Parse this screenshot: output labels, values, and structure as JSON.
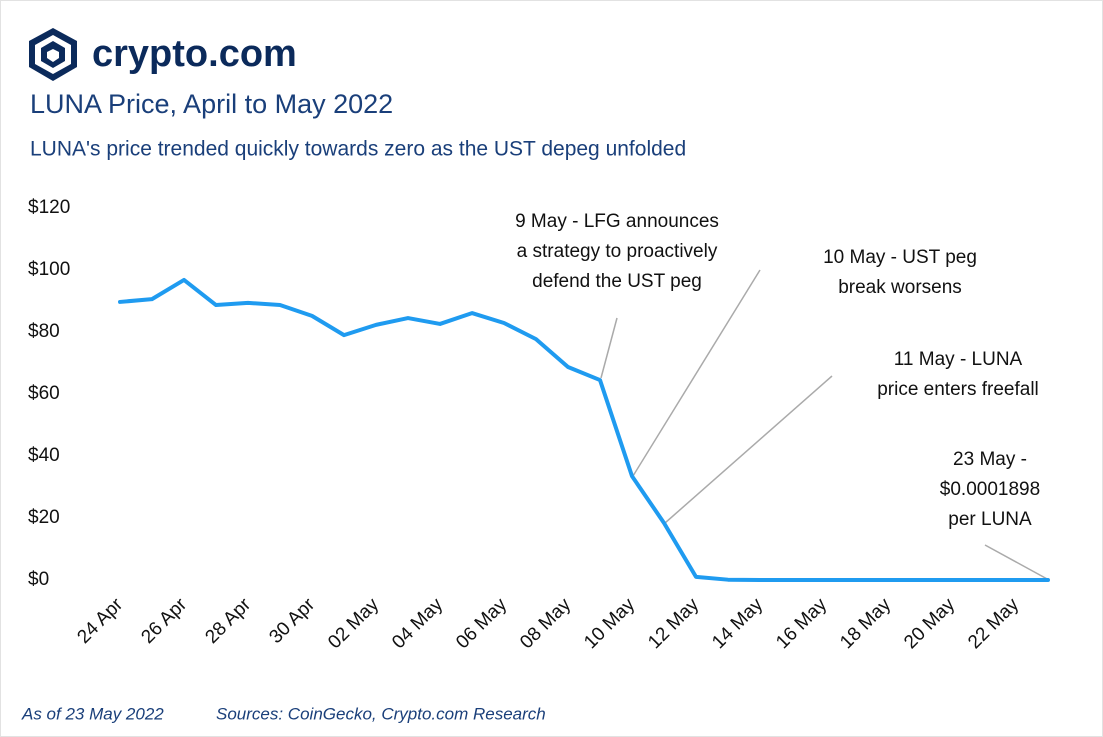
{
  "brand": "crypto.com",
  "chart_data": {
    "type": "line",
    "title": "LUNA Price, April to May 2022",
    "subtitle": "LUNA's price trended quickly towards zero as the UST depeg unfolded",
    "categories": [
      "24 Apr",
      null,
      "26 Apr",
      null,
      "28 Apr",
      null,
      "30 Apr",
      null,
      "02 May",
      null,
      "04 May",
      null,
      "06 May",
      null,
      "08 May",
      null,
      "10 May",
      null,
      "12 May",
      null,
      "14 May",
      null,
      "16 May",
      null,
      "18 May",
      null,
      "20 May",
      null,
      "22 May",
      null
    ],
    "values": [
      89.7,
      90.6,
      96.8,
      88.7,
      89.4,
      88.7,
      85.2,
      79.0,
      82.3,
      84.5,
      82.6,
      86.1,
      82.9,
      77.7,
      68.7,
      64.5,
      33.5,
      18.4,
      1.0,
      0.1,
      0.0002,
      0.0002,
      0.0002,
      0.0002,
      0.0002,
      0.0002,
      0.0002,
      0.0002,
      0.0002,
      0.0001898
    ],
    "color": "#1f9bf0",
    "ylim": [
      0,
      120
    ],
    "yticks": [
      {
        "value": 0,
        "label": "$0"
      },
      {
        "value": 20,
        "label": "$20"
      },
      {
        "value": 40,
        "label": "$40"
      },
      {
        "value": 60,
        "label": "$60"
      },
      {
        "value": 80,
        "label": "$80"
      },
      {
        "value": 100,
        "label": "$100"
      },
      {
        "value": 120,
        "label": "$120"
      }
    ],
    "annotations": [
      {
        "lines": [
          "9 May - LFG announces",
          "a strategy to proactively",
          "defend the UST peg"
        ]
      },
      {
        "lines": [
          "10 May - UST peg",
          "break worsens"
        ]
      },
      {
        "lines": [
          "11 May - LUNA",
          "price enters freefall"
        ]
      },
      {
        "lines": [
          "23 May -",
          "$0.0001898",
          "per LUNA"
        ]
      }
    ],
    "footnote": "As of 23 May 2022",
    "source": "Sources: CoinGecko, Crypto.com Research"
  }
}
